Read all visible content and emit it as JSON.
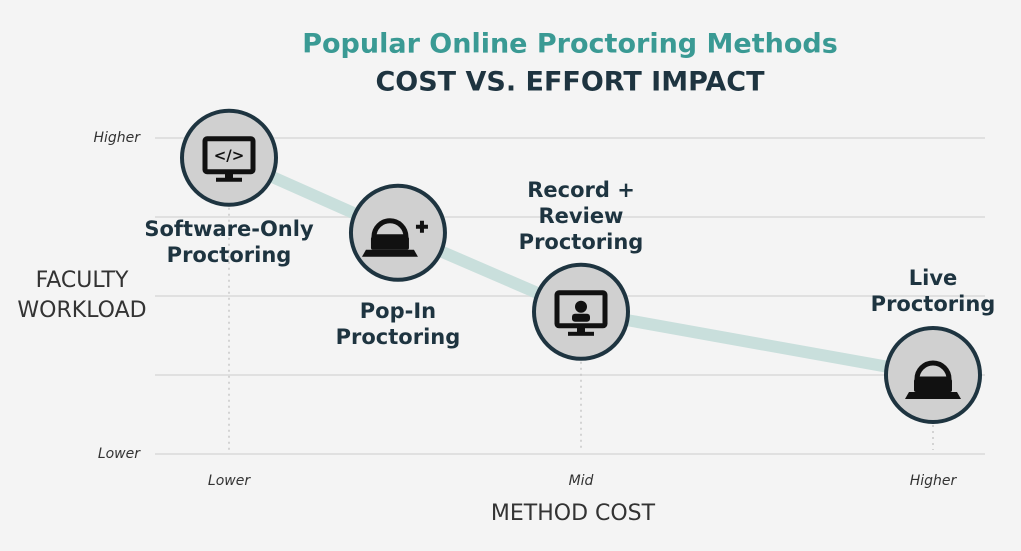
{
  "chart_data": {
    "type": "line",
    "title": "Popular Online Proctoring Methods",
    "subtitle": "COST VS. EFFORT IMPACT",
    "x_label": "METHOD COST",
    "y_label": [
      "FACULTY",
      "WORKLOAD"
    ],
    "x": [
      0,
      2.4,
      5,
      10
    ],
    "series": [
      {
        "color": "#c9dfdc",
        "values": [
          3.75,
          2.8,
          1.8,
          1.0
        ]
      }
    ],
    "labels": [
      [
        "Software-Only",
        "Proctoring"
      ],
      [
        "Pop-In",
        "Proctoring"
      ],
      [
        "Record +",
        "Review",
        "Proctoring"
      ],
      [
        "Live",
        "Proctoring"
      ]
    ],
    "xlim": [
      0,
      10
    ],
    "xticks": [
      {
        "value": 0,
        "label": "Lower"
      },
      {
        "value": 5,
        "label": "Mid"
      },
      {
        "value": 10,
        "label": "Higher"
      }
    ],
    "ylim": [
      0,
      4
    ],
    "yticks": [
      {
        "value": 0,
        "label": "Lower"
      },
      {
        "value": 4,
        "label": "Higher"
      }
    ],
    "grid": true
  }
}
